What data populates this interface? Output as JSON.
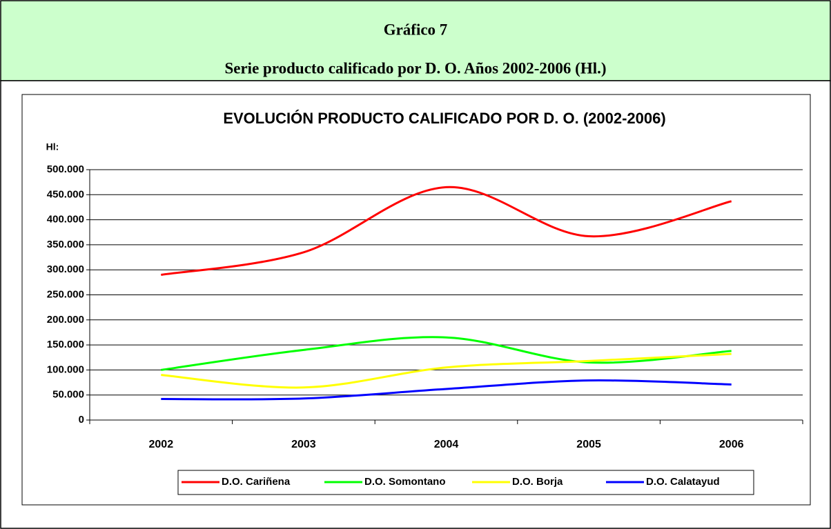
{
  "header": {
    "title": "Gráfico 7",
    "subtitle": "Serie producto calificado por D. O.  Años 2002-2006 (Hl.)"
  },
  "chart_data": {
    "type": "line",
    "title": "EVOLUCIÓN PRODUCTO CALIFICADO POR D. O. (2002-2006)",
    "y_label": "Hl:",
    "categories": [
      "2002",
      "2003",
      "2004",
      "2005",
      "2006"
    ],
    "series": [
      {
        "name": "D.O. Cariñena",
        "color": "#ff0000",
        "values": [
          290000,
          335000,
          465000,
          367000,
          437000
        ]
      },
      {
        "name": "D.O. Somontano",
        "color": "#00ff00",
        "values": [
          100000,
          140000,
          165000,
          115000,
          138000
        ]
      },
      {
        "name": "D.O. Borja",
        "color": "#ffff00",
        "values": [
          90000,
          65000,
          105000,
          118000,
          132000
        ]
      },
      {
        "name": "D.O. Calatayud",
        "color": "#0000ff",
        "values": [
          42000,
          43000,
          62000,
          79000,
          71000
        ]
      }
    ],
    "ylim": [
      0,
      500000
    ],
    "yticks": [
      0,
      {
        "value": 50000,
        "label": "50.000"
      },
      {
        "value": 100000,
        "label": "100.000"
      },
      {
        "value": 150000,
        "label": "150.000"
      },
      {
        "value": 200000,
        "label": "200.000"
      },
      {
        "value": 250000,
        "label": "250.000"
      },
      {
        "value": 300000,
        "label": "300.000"
      },
      {
        "value": 350000,
        "label": "350.000"
      },
      {
        "value": 400000,
        "label": "400.000"
      },
      {
        "value": 450000,
        "label": "450.000"
      },
      {
        "value": 500000,
        "label": "500.000"
      }
    ],
    "grid": true,
    "smooth": true,
    "legend": "bottom"
  }
}
